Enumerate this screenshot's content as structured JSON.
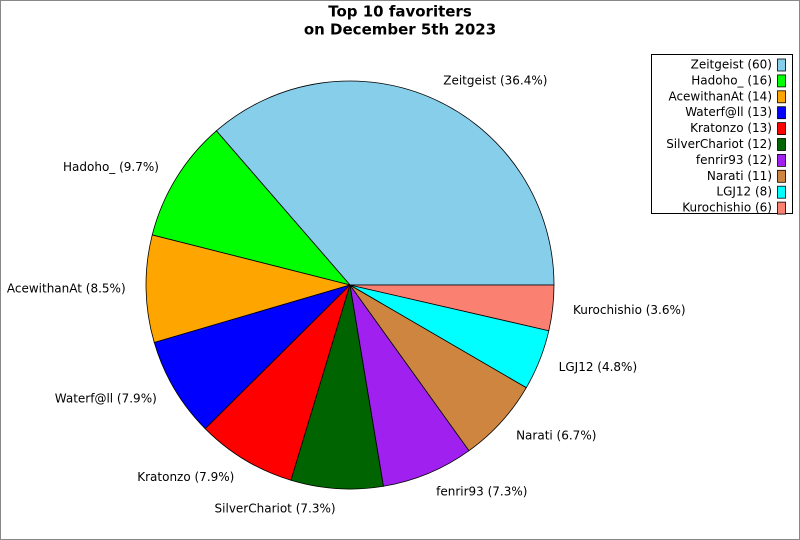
{
  "chart_data": {
    "type": "pie",
    "title": [
      "Top 10 favoriters",
      "on December 5th 2023"
    ],
    "categories": [
      "Zeitgeist (60)",
      "Hadoho_ (16)",
      "AcewithanAt (14)",
      "Waterf@ll (13)",
      "Kratonzo (13)",
      "SilverChariot (12)",
      "fenrir93 (12)",
      "Narati (11)",
      "LGJ12 (8)",
      "Kurochishio (6)"
    ],
    "values": [
      36.4,
      9.7,
      8.5,
      7.9,
      7.9,
      7.3,
      7.3,
      6.7,
      4.8,
      3.6
    ],
    "value_labels": [
      "Zeitgeist (36.4%)",
      "Hadoho_ (9.7%)",
      "AcewithanAt (8.5%)",
      "Waterf@ll (7.9%)",
      "Kratonzo (7.9%)",
      "SilverChariot (7.3%)",
      "fenrir93 (7.3%)",
      "Narati (6.7%)",
      "LGJ12 (4.8%)",
      "Kurochishio (3.6%)"
    ],
    "colors": [
      "#87ceeb",
      "#00ff00",
      "#ffa500",
      "#0000ff",
      "#ff0000",
      "#006400",
      "#a020f0",
      "#cd853f",
      "#00ffff",
      "#fa8072"
    ],
    "legend": "upper right"
  }
}
